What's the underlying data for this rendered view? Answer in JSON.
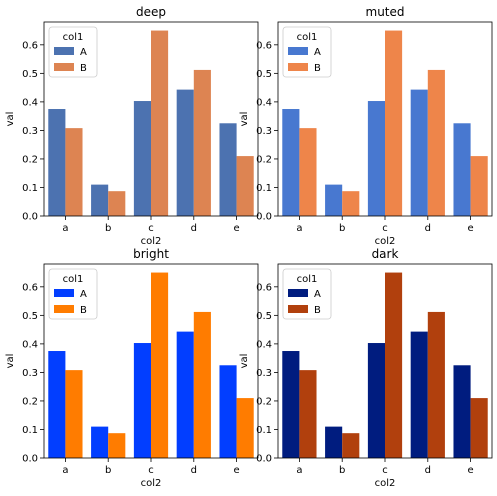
{
  "chart_data": [
    {
      "type": "bar",
      "title": "deep",
      "xlabel": "col2",
      "ylabel": "val",
      "categories": [
        "a",
        "b",
        "c",
        "d",
        "e"
      ],
      "ylim": [
        0,
        0.68
      ],
      "yticks": [
        "0.0",
        "0.1",
        "0.2",
        "0.3",
        "0.4",
        "0.5",
        "0.6"
      ],
      "legend": {
        "title": "col1",
        "position": "upper-left"
      },
      "series": [
        {
          "name": "A",
          "color": "#4c72b0",
          "values": [
            0.375,
            0.11,
            0.403,
            0.443,
            0.325
          ]
        },
        {
          "name": "B",
          "color": "#dd8452",
          "values": [
            0.308,
            0.087,
            0.65,
            0.512,
            0.21
          ]
        }
      ]
    },
    {
      "type": "bar",
      "title": "muted",
      "xlabel": "col2",
      "ylabel": "val",
      "categories": [
        "a",
        "b",
        "c",
        "d",
        "e"
      ],
      "ylim": [
        0,
        0.68
      ],
      "yticks": [
        "0.0",
        "0.1",
        "0.2",
        "0.3",
        "0.4",
        "0.5",
        "0.6"
      ],
      "legend": {
        "title": "col1",
        "position": "upper-left"
      },
      "series": [
        {
          "name": "A",
          "color": "#4878d0",
          "values": [
            0.375,
            0.11,
            0.403,
            0.443,
            0.325
          ]
        },
        {
          "name": "B",
          "color": "#ee854a",
          "values": [
            0.308,
            0.087,
            0.65,
            0.512,
            0.21
          ]
        }
      ]
    },
    {
      "type": "bar",
      "title": "bright",
      "xlabel": "col2",
      "ylabel": "val",
      "categories": [
        "a",
        "b",
        "c",
        "d",
        "e"
      ],
      "ylim": [
        0,
        0.68
      ],
      "yticks": [
        "0.0",
        "0.1",
        "0.2",
        "0.3",
        "0.4",
        "0.5",
        "0.6"
      ],
      "legend": {
        "title": "col1",
        "position": "upper-left"
      },
      "series": [
        {
          "name": "A",
          "color": "#023eff",
          "values": [
            0.375,
            0.11,
            0.403,
            0.443,
            0.325
          ]
        },
        {
          "name": "B",
          "color": "#ff7c00",
          "values": [
            0.308,
            0.087,
            0.65,
            0.512,
            0.21
          ]
        }
      ]
    },
    {
      "type": "bar",
      "title": "dark",
      "xlabel": "col2",
      "ylabel": "val",
      "categories": [
        "a",
        "b",
        "c",
        "d",
        "e"
      ],
      "ylim": [
        0,
        0.68
      ],
      "yticks": [
        "0.0",
        "0.1",
        "0.2",
        "0.3",
        "0.4",
        "0.5",
        "0.6"
      ],
      "legend": {
        "title": "col1",
        "position": "upper-left"
      },
      "series": [
        {
          "name": "A",
          "color": "#001c7f",
          "values": [
            0.375,
            0.11,
            0.403,
            0.443,
            0.325
          ]
        },
        {
          "name": "B",
          "color": "#b1400d",
          "values": [
            0.308,
            0.087,
            0.65,
            0.512,
            0.21
          ]
        }
      ]
    }
  ]
}
